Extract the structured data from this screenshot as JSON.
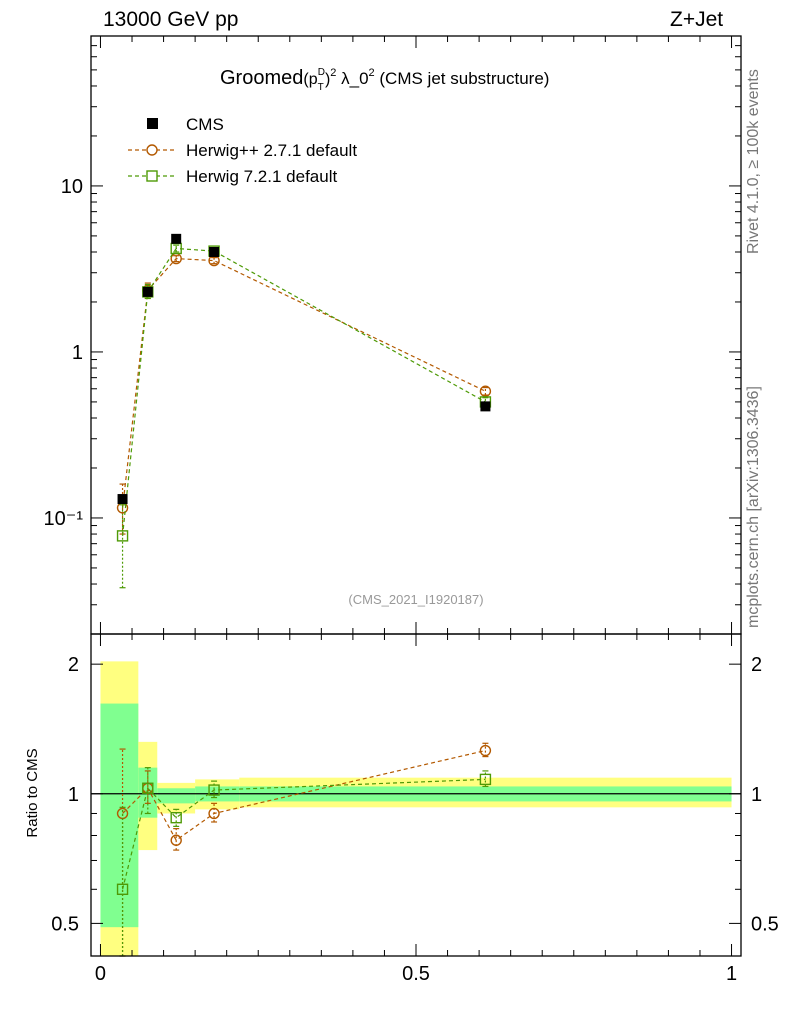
{
  "header": {
    "left": "13000 GeV pp",
    "right": "Z+Jet"
  },
  "side_labels": {
    "top": "Rivet 4.1.0, ≥ 100k events",
    "bottom": "mcplots.cern.ch [arXiv:1306.3436]"
  },
  "plot": {
    "title_main": "Groomed",
    "title_p": "(p",
    "title_T": "T",
    "title_D": "D",
    "title_close": ")",
    "title_sq": "2",
    "title_lambda": " λ_0",
    "title_sq2": "2",
    "title_rest": " (CMS jet substructure)",
    "watermark": "(CMS_2021_I1920187)"
  },
  "chart_data": {
    "type": "scatter",
    "x_range": [
      -0.015,
      1.015
    ],
    "x_ticks": [
      "0",
      "0.5",
      "1"
    ],
    "main": {
      "yscale": "log",
      "y_range": [
        0.02,
        80
      ],
      "y_ticks": [
        "10⁻¹",
        "1",
        "10"
      ],
      "series": [
        {
          "name": "CMS",
          "color": "#000000",
          "marker": "filled-square",
          "x": [
            0.035,
            0.075,
            0.12,
            0.18,
            0.61
          ],
          "y": [
            0.13,
            2.3,
            4.8,
            4.0,
            0.47
          ]
        },
        {
          "name": "Herwig++ 2.7.1 default",
          "color": "#b35900",
          "marker": "open-circle",
          "x": [
            0.035,
            0.075,
            0.12,
            0.18,
            0.61
          ],
          "y": [
            0.115,
            2.35,
            3.65,
            3.55,
            0.58
          ],
          "err_low": [
            0.08,
            2.1,
            3.5,
            3.4,
            0.55
          ],
          "err_high": [
            0.16,
            2.6,
            3.8,
            3.7,
            0.61
          ]
        },
        {
          "name": "Herwig 7.2.1 default",
          "color": "#4e9a06",
          "marker": "open-square",
          "x": [
            0.035,
            0.075,
            0.12,
            0.18,
            0.61
          ],
          "y": [
            0.078,
            2.3,
            4.2,
            4.05,
            0.5
          ],
          "err_low": [
            0.038,
            2.1,
            4.0,
            3.9,
            0.48
          ],
          "err_high": [
            0.12,
            2.55,
            4.4,
            4.2,
            0.53
          ]
        }
      ]
    },
    "ratio": {
      "ylabel": "Ratio to CMS",
      "yscale": "log",
      "y_range": [
        0.42,
        2.35
      ],
      "y_ticks": [
        "0.5",
        "1",
        "2"
      ],
      "bands": [
        {
          "x0": 0.0,
          "x1": 0.06,
          "yellow": [
            0.0,
            2.03
          ],
          "green": [
            0.49,
            1.62
          ]
        },
        {
          "x0": 0.06,
          "x1": 0.09,
          "yellow": [
            0.74,
            1.32
          ],
          "green": [
            0.88,
            1.15
          ]
        },
        {
          "x0": 0.09,
          "x1": 0.15,
          "yellow": [
            0.9,
            1.06
          ],
          "green": [
            0.95,
            1.03
          ]
        },
        {
          "x0": 0.15,
          "x1": 0.22,
          "yellow": [
            0.92,
            1.08
          ],
          "green": [
            0.96,
            1.04
          ]
        },
        {
          "x0": 0.22,
          "x1": 1.0,
          "yellow": [
            0.93,
            1.09
          ],
          "green": [
            0.96,
            1.04
          ]
        }
      ],
      "series": [
        {
          "name": "Herwig++ 2.7.1 default",
          "color": "#b35900",
          "marker": "open-circle",
          "x": [
            0.035,
            0.075,
            0.12,
            0.18,
            0.61
          ],
          "y": [
            0.9,
            1.03,
            0.78,
            0.9,
            1.26
          ],
          "err_low": [
            0.4,
            0.95,
            0.74,
            0.86,
            1.22
          ],
          "err_high": [
            1.27,
            1.13,
            0.83,
            0.95,
            1.31
          ]
        },
        {
          "name": "Herwig 7.2.1 default",
          "color": "#4e9a06",
          "marker": "open-square",
          "x": [
            0.035,
            0.075,
            0.12,
            0.18,
            0.61
          ],
          "y": [
            0.6,
            1.03,
            0.88,
            1.02,
            1.08
          ],
          "err_low": [
            0.3,
            0.9,
            0.84,
            0.98,
            1.04
          ],
          "err_high": [
            0.93,
            1.15,
            0.92,
            1.07,
            1.13
          ]
        }
      ]
    }
  }
}
